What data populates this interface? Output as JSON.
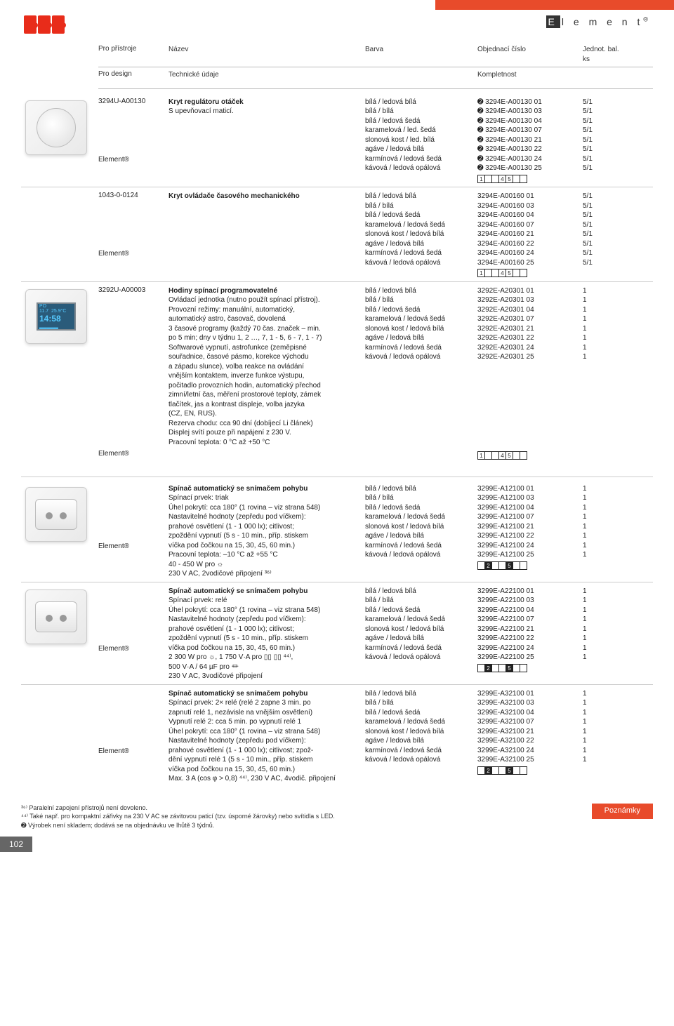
{
  "brand": {
    "e": "E",
    "name": "l e m e n t",
    "reg": "®"
  },
  "header": {
    "row1": {
      "c1": "Pro přístroje",
      "c2": "Název",
      "c3": "Barva",
      "c4": "Objednací číslo",
      "c5": "Jednot. bal. ks"
    },
    "row2": {
      "c1": "Pro design",
      "c2": "Technické údaje",
      "c3": "",
      "c4": "Kompletnost",
      "c5": ""
    }
  },
  "products": [
    {
      "thumb": "dial",
      "code": "3294U-A00130",
      "title": "Kryt regulátoru otáček",
      "desc": [
        "S upevňovací maticí."
      ],
      "variants": [
        {
          "color": "bílá / ledová bílá",
          "order": "➋ 3294E-A00130 01",
          "pack": "5/1"
        },
        {
          "color": "bílá / bílá",
          "order": "➋ 3294E-A00130 03",
          "pack": "5/1"
        },
        {
          "color": "bílá / ledová šedá",
          "order": "➋ 3294E-A00130 04",
          "pack": "5/1"
        },
        {
          "color": "karamelová / led. šedá",
          "order": "➋ 3294E-A00130 07",
          "pack": "5/1"
        },
        {
          "color": "slonová kost / led. bílá",
          "order": "➋ 3294E-A00130 21",
          "pack": "5/1"
        },
        {
          "color": "agáve / ledová bílá",
          "order": "➋ 3294E-A00130 22",
          "pack": "5/1"
        },
        {
          "color": "karmínová / ledová šedá",
          "order": "➋ 3294E-A00130 24",
          "pack": "5/1"
        },
        {
          "color": "kávová / ledová opálová",
          "order": "➋ 3294E-A00130 25",
          "pack": "5/1"
        }
      ],
      "element": "Element®",
      "boxes": [
        "1",
        "",
        "",
        "4",
        "5",
        "",
        ""
      ]
    },
    {
      "thumb": "",
      "code": "1043-0-0124",
      "title": "Kryt ovládače časového mechanického",
      "desc": [],
      "variants": [
        {
          "color": "bílá / ledová bílá",
          "order": "3294E-A00160 01",
          "pack": "5/1"
        },
        {
          "color": "bílá / bílá",
          "order": "3294E-A00160 03",
          "pack": "5/1"
        },
        {
          "color": "bílá / ledová šedá",
          "order": "3294E-A00160 04",
          "pack": "5/1"
        },
        {
          "color": "karamelová / ledová šedá",
          "order": "3294E-A00160 07",
          "pack": "5/1"
        },
        {
          "color": "slonová kost / ledová bílá",
          "order": "3294E-A00160 21",
          "pack": "5/1"
        },
        {
          "color": "agáve / ledová bílá",
          "order": "3294E-A00160 22",
          "pack": "5/1"
        },
        {
          "color": "karmínová / ledová šedá",
          "order": "3294E-A00160 24",
          "pack": "5/1"
        },
        {
          "color": "kávová / ledová opálová",
          "order": "3294E-A00160 25",
          "pack": "5/1"
        }
      ],
      "element": "Element®",
      "boxes": [
        "1",
        "",
        "",
        "4",
        "5",
        "",
        ""
      ]
    },
    {
      "thumb": "timer",
      "code": "3292U-A00003",
      "title": "Hodiny spínací programovatelné",
      "desc": [
        "Ovládací jednotka (nutno použít spínací přístroj).",
        "Provozní režimy: manuální, automatický,",
        "automatický astro, časovač, dovolená",
        "3 časové programy (každý 70 čas. značek – min.",
        "po 5 min; dny v týdnu 1, 2 …, 7, 1 - 5, 6 - 7, 1 - 7)",
        "Softwarové vypnutí, astrofunkce (zeměpisné",
        "souřadnice, časové pásmo, korekce východu",
        "a západu slunce), volba reakce na ovládání",
        "vnějším kontaktem, inverze funkce výstupu,",
        "počitadlo provozních hodin, automatický přechod",
        "zimní/letní čas, měření prostorové teploty, zámek",
        "tlačítek, jas a kontrast displeje, volba jazyka",
        "(CZ, EN, RUS).",
        "Rezerva chodu: cca 90 dní (dobíjecí Li článek)",
        "Displej svítí pouze při napájení z 230 V.",
        "Pracovní teplota: 0 °C až +50 °C"
      ],
      "variants": [
        {
          "color": "bílá / ledová bílá",
          "order": "3292E-A20301 01",
          "pack": "1"
        },
        {
          "color": "bílá / bílá",
          "order": "3292E-A20301 03",
          "pack": "1"
        },
        {
          "color": "bílá / ledová šedá",
          "order": "3292E-A20301 04",
          "pack": "1"
        },
        {
          "color": "karamelová / ledová šedá",
          "order": "3292E-A20301 07",
          "pack": "1"
        },
        {
          "color": "slonová kost / ledová bílá",
          "order": "3292E-A20301 21",
          "pack": "1"
        },
        {
          "color": "agáve / ledová bílá",
          "order": "3292E-A20301 22",
          "pack": "1"
        },
        {
          "color": "karmínová / ledová šedá",
          "order": "3292E-A20301 24",
          "pack": "1"
        },
        {
          "color": "kávová / ledová opálová",
          "order": "3292E-A20301 25",
          "pack": "1"
        }
      ],
      "element": "Element®",
      "boxes": [
        "1",
        "",
        "",
        "4",
        "5",
        "",
        ""
      ],
      "boxesBelow": true
    },
    {
      "thumb": "sensor",
      "code": "",
      "title": "Spínač automatický se snímačem pohybu",
      "desc": [
        "Spínací prvek: triak",
        "Úhel pokrytí: cca 180° (1 rovina – viz strana 548)",
        "Nastavitelné hodnoty (zepředu pod víčkem):",
        "prahové osvětlení (1 - 1 000 lx); citlivost;",
        "zpoždění vypnutí (5 s - 10 min., příp. stiskem",
        "víčka pod čočkou na 15, 30, 45, 60 min.)",
        "Pracovní teplota: –10 °C až +55 °C",
        "40 - 450 W pro ☼",
        "230 V AC, 2vodičové připojení ³⁶⁾"
      ],
      "variants": [
        {
          "color": "bílá / ledová bílá",
          "order": "3299E-A12100 01",
          "pack": "1"
        },
        {
          "color": "bílá / bílá",
          "order": "3299E-A12100 03",
          "pack": "1"
        },
        {
          "color": "bílá / ledová šedá",
          "order": "3299E-A12100 04",
          "pack": "1"
        },
        {
          "color": "karamelová / ledová šedá",
          "order": "3299E-A12100 07",
          "pack": "1"
        },
        {
          "color": "slonová kost / ledová bílá",
          "order": "3299E-A12100 21",
          "pack": "1"
        },
        {
          "color": "agáve / ledová bílá",
          "order": "3299E-A12100 22",
          "pack": "1"
        },
        {
          "color": "karmínová / ledová šedá",
          "order": "3299E-A12100 24",
          "pack": "1"
        },
        {
          "color": "kávová / ledová opálová",
          "order": "3299E-A12100 25",
          "pack": "1"
        }
      ],
      "element": "Element®",
      "boxes": [
        "",
        "2",
        "",
        "",
        "5",
        "",
        ""
      ],
      "boxesFilled": [
        1,
        4
      ]
    },
    {
      "thumb": "sensor",
      "code": "",
      "title": "Spínač automatický se snímačem pohybu",
      "desc": [
        "Spínací prvek: relé",
        "Úhel pokrytí: cca 180° (1 rovina – viz strana 548)",
        "Nastavitelné hodnoty (zepředu pod víčkem):",
        "prahové osvětlení (1 - 1 000 lx); citlivost;",
        "zpoždění vypnutí (5 s - 10 min., příp. stiskem",
        "víčka pod čočkou na 15, 30, 45, 60 min.)",
        "2 300 W pro ☼, 1 750 V·A pro ▯▯ ▯▯ ⁴⁴⁾,",
        "500 V·A / 64 µF pro ⏛",
        "230 V AC, 3vodičové připojení"
      ],
      "variants": [
        {
          "color": "bílá / ledová bílá",
          "order": "3299E-A22100 01",
          "pack": "1"
        },
        {
          "color": "bílá / bílá",
          "order": "3299E-A22100 03",
          "pack": "1"
        },
        {
          "color": "bílá / ledová šedá",
          "order": "3299E-A22100 04",
          "pack": "1"
        },
        {
          "color": "karamelová / ledová šedá",
          "order": "3299E-A22100 07",
          "pack": "1"
        },
        {
          "color": "slonová kost / ledová bílá",
          "order": "3299E-A22100 21",
          "pack": "1"
        },
        {
          "color": "agáve / ledová bílá",
          "order": "3299E-A22100 22",
          "pack": "1"
        },
        {
          "color": "karmínová / ledová šedá",
          "order": "3299E-A22100 24",
          "pack": "1"
        },
        {
          "color": "kávová / ledová opálová",
          "order": "3299E-A22100 25",
          "pack": "1"
        }
      ],
      "element": "Element®",
      "boxes": [
        "",
        "2",
        "",
        "",
        "5",
        "",
        ""
      ],
      "boxesFilled": [
        1,
        4
      ]
    },
    {
      "thumb": "",
      "code": "",
      "title": "Spínač automatický se snímačem pohybu",
      "desc": [
        "Spínací prvek: 2× relé (relé 2 zapne 3 min. po",
        "zapnutí relé 1, nezávisle na vnějším osvětlení)",
        "Vypnutí relé 2: cca 5 min. po vypnutí relé 1",
        "Úhel pokrytí: cca 180° (1 rovina – viz strana 548)",
        "Nastavitelné hodnoty (zepředu pod víčkem):",
        "prahové osvětlení (1 - 1 000 lx); citlivost; zpož-",
        "dění vypnutí relé 1 (5 s - 10 min., příp. stiskem",
        "víčka pod čočkou na 15, 30, 45, 60 min.)",
        "Max. 3 A (cos φ > 0,8) ⁴⁴⁾, 230 V AC, 4vodič. připojení"
      ],
      "variants": [
        {
          "color": "bílá / ledová bílá",
          "order": "3299E-A32100 01",
          "pack": "1"
        },
        {
          "color": "bílá / bílá",
          "order": "3299E-A32100 03",
          "pack": "1"
        },
        {
          "color": "bílá / ledová šedá",
          "order": "3299E-A32100 04",
          "pack": "1"
        },
        {
          "color": "karamelová / ledová šedá",
          "order": "3299E-A32100 07",
          "pack": "1"
        },
        {
          "color": "slonová kost / ledová bílá",
          "order": "3299E-A32100 21",
          "pack": "1"
        },
        {
          "color": "agáve / ledová bílá",
          "order": "3299E-A32100 22",
          "pack": "1"
        },
        {
          "color": "karmínová / ledová šedá",
          "order": "3299E-A32100 24",
          "pack": "1"
        },
        {
          "color": "kávová / ledová opálová",
          "order": "3299E-A32100 25",
          "pack": "1"
        }
      ],
      "element": "Element®",
      "boxes": [
        "",
        "2",
        "",
        "",
        "5",
        "",
        ""
      ],
      "boxesFilled": [
        1,
        4
      ]
    }
  ],
  "footnotes": [
    "³⁶⁾ Paralelní zapojení přístrojů není dovoleno.",
    "⁴⁴⁾ Také např. pro kompaktní zářivky na 230 V AC se závitovou paticí (tzv. úsporné žárovky) nebo svítidla s LED.",
    "➋ Výrobek není skladem; dodává se na objednávku ve lhůtě 3 týdnů."
  ],
  "poznamky": "Poznámky",
  "page": "102"
}
